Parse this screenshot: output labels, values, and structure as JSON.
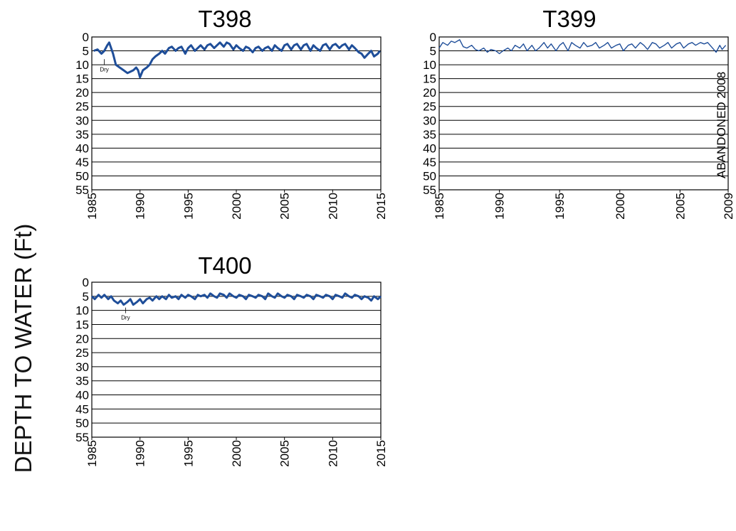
{
  "figure": {
    "ylabel": "DEPTH TO WATER  (Ft)"
  },
  "colors": {
    "series": "#1f4e99",
    "grid": "#000000"
  },
  "chart_data": [
    {
      "id": "t398",
      "type": "line",
      "title": "T398",
      "xlim": [
        1985,
        2015
      ],
      "ylim": [
        0,
        55
      ],
      "y_inverted": true,
      "xticks": [
        "1985",
        "1990",
        "1995",
        "2000",
        "2005",
        "2010",
        "2015"
      ],
      "yticks": [
        "0",
        "5",
        "10",
        "15",
        "20",
        "25",
        "30",
        "35",
        "40",
        "45",
        "50",
        "55"
      ],
      "grid": "horizontal",
      "annotations": [
        {
          "text": "Dry",
          "x": 1986.3,
          "y": 8
        }
      ],
      "series": [
        {
          "x": [
            1985.2,
            1985.6,
            1986.0,
            1986.3,
            1986.6,
            1986.8,
            1987.0,
            1987.2,
            1987.5,
            1987.9,
            1988.3,
            1988.7,
            1989.0,
            1989.3,
            1989.6,
            1989.8,
            1990.0,
            1990.3,
            1990.7,
            1991.0,
            1991.3,
            1991.6,
            1992.0,
            1992.3,
            1992.6,
            1993.0,
            1993.3,
            1993.7,
            1994.0,
            1994.3,
            1994.7,
            1995.0,
            1995.3,
            1995.7,
            1996.0,
            1996.3,
            1996.7,
            1997.0,
            1997.3,
            1997.7,
            1998.0,
            1998.3,
            1998.7,
            1999.0,
            1999.3,
            1999.7,
            2000.0,
            2000.3,
            2000.7,
            2001.0,
            2001.3,
            2001.7,
            2002.0,
            2002.3,
            2002.7,
            2003.0,
            2003.3,
            2003.7,
            2004.0,
            2004.3,
            2004.7,
            2005.0,
            2005.3,
            2005.7,
            2006.0,
            2006.3,
            2006.7,
            2007.0,
            2007.3,
            2007.7,
            2008.0,
            2008.3,
            2008.7,
            2009.0,
            2009.3,
            2009.7,
            2010.0,
            2010.3,
            2010.7,
            2011.0,
            2011.3,
            2011.7,
            2012.0,
            2012.3,
            2012.7,
            2013.0,
            2013.3,
            2013.7,
            2014.0,
            2014.3,
            2014.7,
            2014.9
          ],
          "y": [
            5,
            4.5,
            6,
            5,
            3,
            2,
            4,
            6,
            10,
            11,
            12,
            13,
            12.5,
            12,
            11,
            12,
            14.5,
            12,
            11,
            10,
            8,
            7,
            6,
            5,
            6,
            4,
            3.5,
            5,
            4,
            3.5,
            6,
            4,
            3,
            5,
            4,
            3,
            4.5,
            3,
            2.5,
            4,
            3,
            2,
            3.5,
            2,
            2.5,
            4.5,
            3,
            4,
            5,
            3.5,
            4,
            5.5,
            4,
            3.5,
            5,
            4,
            3.5,
            5,
            3,
            4,
            5,
            3,
            2.5,
            4.5,
            3,
            2.5,
            4.5,
            3,
            2.5,
            5,
            3,
            4,
            5,
            3,
            2.5,
            4.5,
            3,
            2.5,
            4,
            3,
            2.5,
            4.5,
            3,
            4,
            5.5,
            6,
            7.5,
            6,
            5,
            7,
            6,
            5
          ]
        }
      ]
    },
    {
      "id": "t399",
      "type": "line",
      "title": "T399",
      "xlim": [
        1985,
        2009
      ],
      "ylim": [
        0,
        55
      ],
      "y_inverted": true,
      "xticks": [
        "1985",
        "1990",
        "1995",
        "2000",
        "2005",
        "2009"
      ],
      "yticks": [
        "0",
        "5",
        "10",
        "15",
        "20",
        "25",
        "30",
        "35",
        "40",
        "45",
        "50",
        "55"
      ],
      "grid": "horizontal",
      "annotations": [
        {
          "text": "ABANDONED 2008",
          "rotated": true
        }
      ],
      "series": [
        {
          "x": [
            1985.0,
            1985.3,
            1985.7,
            1986.0,
            1986.3,
            1986.7,
            1987.0,
            1987.3,
            1987.7,
            1988.0,
            1988.3,
            1988.7,
            1989.0,
            1989.3,
            1989.7,
            1990.0,
            1990.3,
            1990.7,
            1991.0,
            1991.3,
            1991.7,
            1992.0,
            1992.3,
            1992.7,
            1993.0,
            1993.3,
            1993.7,
            1994.0,
            1994.3,
            1994.7,
            1995.0,
            1995.3,
            1995.7,
            1996.0,
            1996.3,
            1996.7,
            1997.0,
            1997.3,
            1997.7,
            1998.0,
            1998.3,
            1998.7,
            1999.0,
            1999.3,
            1999.7,
            2000.0,
            2000.3,
            2000.7,
            2001.0,
            2001.3,
            2001.7,
            2002.0,
            2002.3,
            2002.7,
            2003.0,
            2003.3,
            2003.7,
            2004.0,
            2004.3,
            2004.7,
            2005.0,
            2005.3,
            2005.7,
            2006.0,
            2006.3,
            2006.7,
            2007.0,
            2007.3,
            2007.7,
            2008.0,
            2008.3,
            2008.5,
            2008.8
          ],
          "y": [
            4,
            2,
            3,
            1.5,
            2,
            1,
            3.5,
            4,
            3,
            4.5,
            5,
            4,
            5.5,
            4.5,
            5,
            6,
            5,
            4,
            5,
            3,
            4,
            2.5,
            5,
            3,
            5,
            4,
            2,
            4,
            2.5,
            5,
            3,
            2,
            5,
            2,
            3,
            4,
            2,
            3.5,
            3,
            2,
            4,
            3,
            2,
            4,
            3,
            2.5,
            5,
            3,
            2.5,
            4,
            2,
            3,
            4.5,
            2,
            2.5,
            4,
            3,
            2,
            4,
            2.5,
            2,
            4,
            2.5,
            2,
            3,
            2,
            2.5,
            2,
            4,
            5.5,
            3,
            4.5,
            3
          ]
        }
      ]
    },
    {
      "id": "t400",
      "type": "line",
      "title": "T400",
      "xlim": [
        1985,
        2015
      ],
      "ylim": [
        0,
        55
      ],
      "y_inverted": true,
      "xticks": [
        "1985",
        "1990",
        "1995",
        "2000",
        "2005",
        "2010",
        "2015"
      ],
      "yticks": [
        "0",
        "5",
        "10",
        "15",
        "20",
        "25",
        "30",
        "35",
        "40",
        "45",
        "50",
        "55"
      ],
      "grid": "horizontal",
      "annotations": [
        {
          "text": "Dry",
          "x": 1988.5,
          "y": 9
        }
      ],
      "series": [
        {
          "x": [
            1985.0,
            1985.3,
            1985.7,
            1986.0,
            1986.3,
            1986.7,
            1987.0,
            1987.3,
            1987.7,
            1988.0,
            1988.3,
            1988.7,
            1989.0,
            1989.3,
            1989.7,
            1990.0,
            1990.3,
            1990.7,
            1991.0,
            1991.3,
            1991.7,
            1992.0,
            1992.3,
            1992.7,
            1993.0,
            1993.3,
            1993.7,
            1994.0,
            1994.3,
            1994.7,
            1995.0,
            1995.3,
            1995.7,
            1996.0,
            1996.3,
            1996.7,
            1997.0,
            1997.3,
            1997.7,
            1998.0,
            1998.3,
            1998.7,
            1999.0,
            1999.3,
            1999.7,
            2000.0,
            2000.3,
            2000.7,
            2001.0,
            2001.3,
            2001.7,
            2002.0,
            2002.3,
            2002.7,
            2003.0,
            2003.3,
            2003.7,
            2004.0,
            2004.3,
            2004.7,
            2005.0,
            2005.3,
            2005.7,
            2006.0,
            2006.3,
            2006.7,
            2007.0,
            2007.3,
            2007.7,
            2008.0,
            2008.3,
            2008.7,
            2009.0,
            2009.3,
            2009.7,
            2010.0,
            2010.3,
            2010.7,
            2011.0,
            2011.3,
            2011.7,
            2012.0,
            2012.3,
            2012.7,
            2013.0,
            2013.3,
            2013.7,
            2014.0,
            2014.3,
            2014.7,
            2015.0
          ],
          "y": [
            5,
            6,
            4.5,
            5.5,
            4.5,
            6,
            5,
            6.5,
            7.5,
            6.5,
            8,
            7,
            6,
            8,
            7,
            6,
            7.5,
            6,
            5.5,
            6.5,
            5,
            6,
            5,
            6,
            4.5,
            5.5,
            5,
            6,
            4.5,
            5.5,
            4.5,
            5,
            6,
            4.5,
            5,
            4.5,
            5.5,
            4,
            5,
            5.5,
            4,
            4.5,
            5.5,
            4,
            5,
            5.5,
            4.5,
            5,
            6,
            4.5,
            5,
            5.5,
            4.5,
            5,
            6,
            4,
            5,
            5.5,
            4,
            5,
            5.5,
            4.5,
            5,
            6,
            4.5,
            5,
            5.5,
            4.5,
            5,
            6,
            4.5,
            5,
            5.5,
            4.5,
            5,
            6,
            4.5,
            5,
            5.5,
            4,
            5,
            5.5,
            4.5,
            5,
            6,
            5,
            5.5,
            6.5,
            5,
            6,
            5
          ]
        }
      ]
    }
  ]
}
